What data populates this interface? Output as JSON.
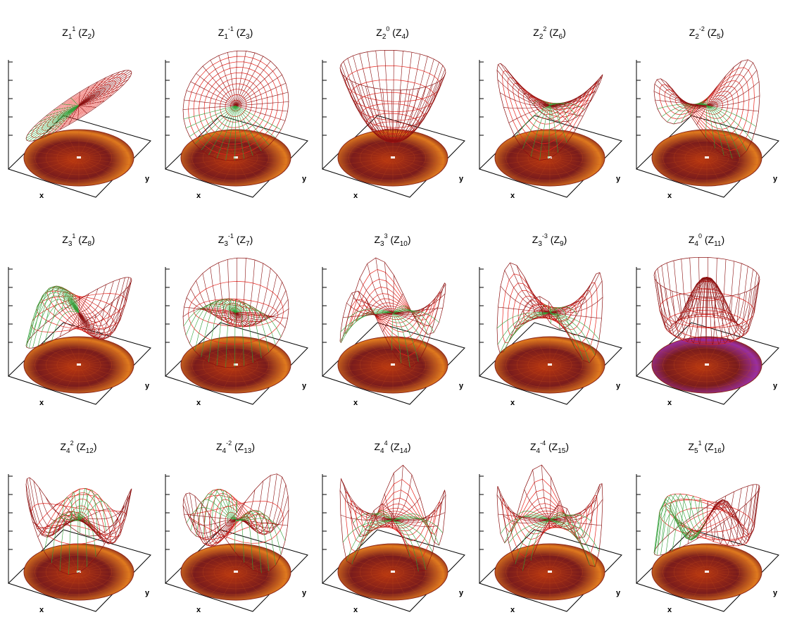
{
  "figure": {
    "axis_x_label": "x",
    "axis_y_label": "y",
    "colors": {
      "surface_top": "#e8231c",
      "surface_dark": "#8b1010",
      "surface_under": "#2e9e35",
      "disk_dark": "#7a1c1c",
      "disk_mid": "#b8360f",
      "disk_orange": "#e07a1e",
      "disk_purple": "#9a2fa0"
    },
    "panels": [
      {
        "n": 1,
        "m": 1,
        "j": 2,
        "sup": "1",
        "sub_n": "1",
        "label": "Z2",
        "type": "tilt-plane"
      },
      {
        "n": 1,
        "m": -1,
        "j": 3,
        "sup": "-1",
        "sub_n": "1",
        "label": "Z3",
        "type": "tilt-disk"
      },
      {
        "n": 2,
        "m": 0,
        "j": 4,
        "sup": "0",
        "sub_n": "2",
        "label": "Z4",
        "type": "bowl"
      },
      {
        "n": 2,
        "m": 2,
        "j": 6,
        "sup": "2",
        "sub_n": "2",
        "label": "Z6",
        "type": "saddle"
      },
      {
        "n": 2,
        "m": -2,
        "j": 5,
        "sup": "-2",
        "sub_n": "2",
        "label": "Z5",
        "type": "saddle2"
      },
      {
        "n": 3,
        "m": 1,
        "j": 8,
        "sup": "1",
        "sub_n": "3",
        "label": "Z8",
        "type": "coma"
      },
      {
        "n": 3,
        "m": -1,
        "j": 7,
        "sup": "-1",
        "sub_n": "3",
        "label": "Z7",
        "type": "coma2"
      },
      {
        "n": 3,
        "m": 3,
        "j": 10,
        "sup": "3",
        "sub_n": "3",
        "label": "Z10",
        "type": "trefoil"
      },
      {
        "n": 3,
        "m": -3,
        "j": 9,
        "sup": "-3",
        "sub_n": "3",
        "label": "Z9",
        "type": "trefoil2"
      },
      {
        "n": 4,
        "m": 0,
        "j": 11,
        "sup": "0",
        "sub_n": "4",
        "label": "Z11",
        "type": "spherical"
      },
      {
        "n": 4,
        "m": 2,
        "j": 12,
        "sup": "2",
        "sub_n": "4",
        "label": "Z12",
        "type": "astig2"
      },
      {
        "n": 4,
        "m": -2,
        "j": 13,
        "sup": "-2",
        "sub_n": "4",
        "label": "Z13",
        "type": "astig2b"
      },
      {
        "n": 4,
        "m": 4,
        "j": 14,
        "sup": "4",
        "sub_n": "4",
        "label": "Z14",
        "type": "quad"
      },
      {
        "n": 4,
        "m": -4,
        "j": 15,
        "sup": "-4",
        "sub_n": "4",
        "label": "Z15",
        "type": "quad2"
      },
      {
        "n": 5,
        "m": 1,
        "j": 16,
        "sup": "1",
        "sub_n": "5",
        "label": "Z16",
        "type": "coma5"
      }
    ]
  }
}
